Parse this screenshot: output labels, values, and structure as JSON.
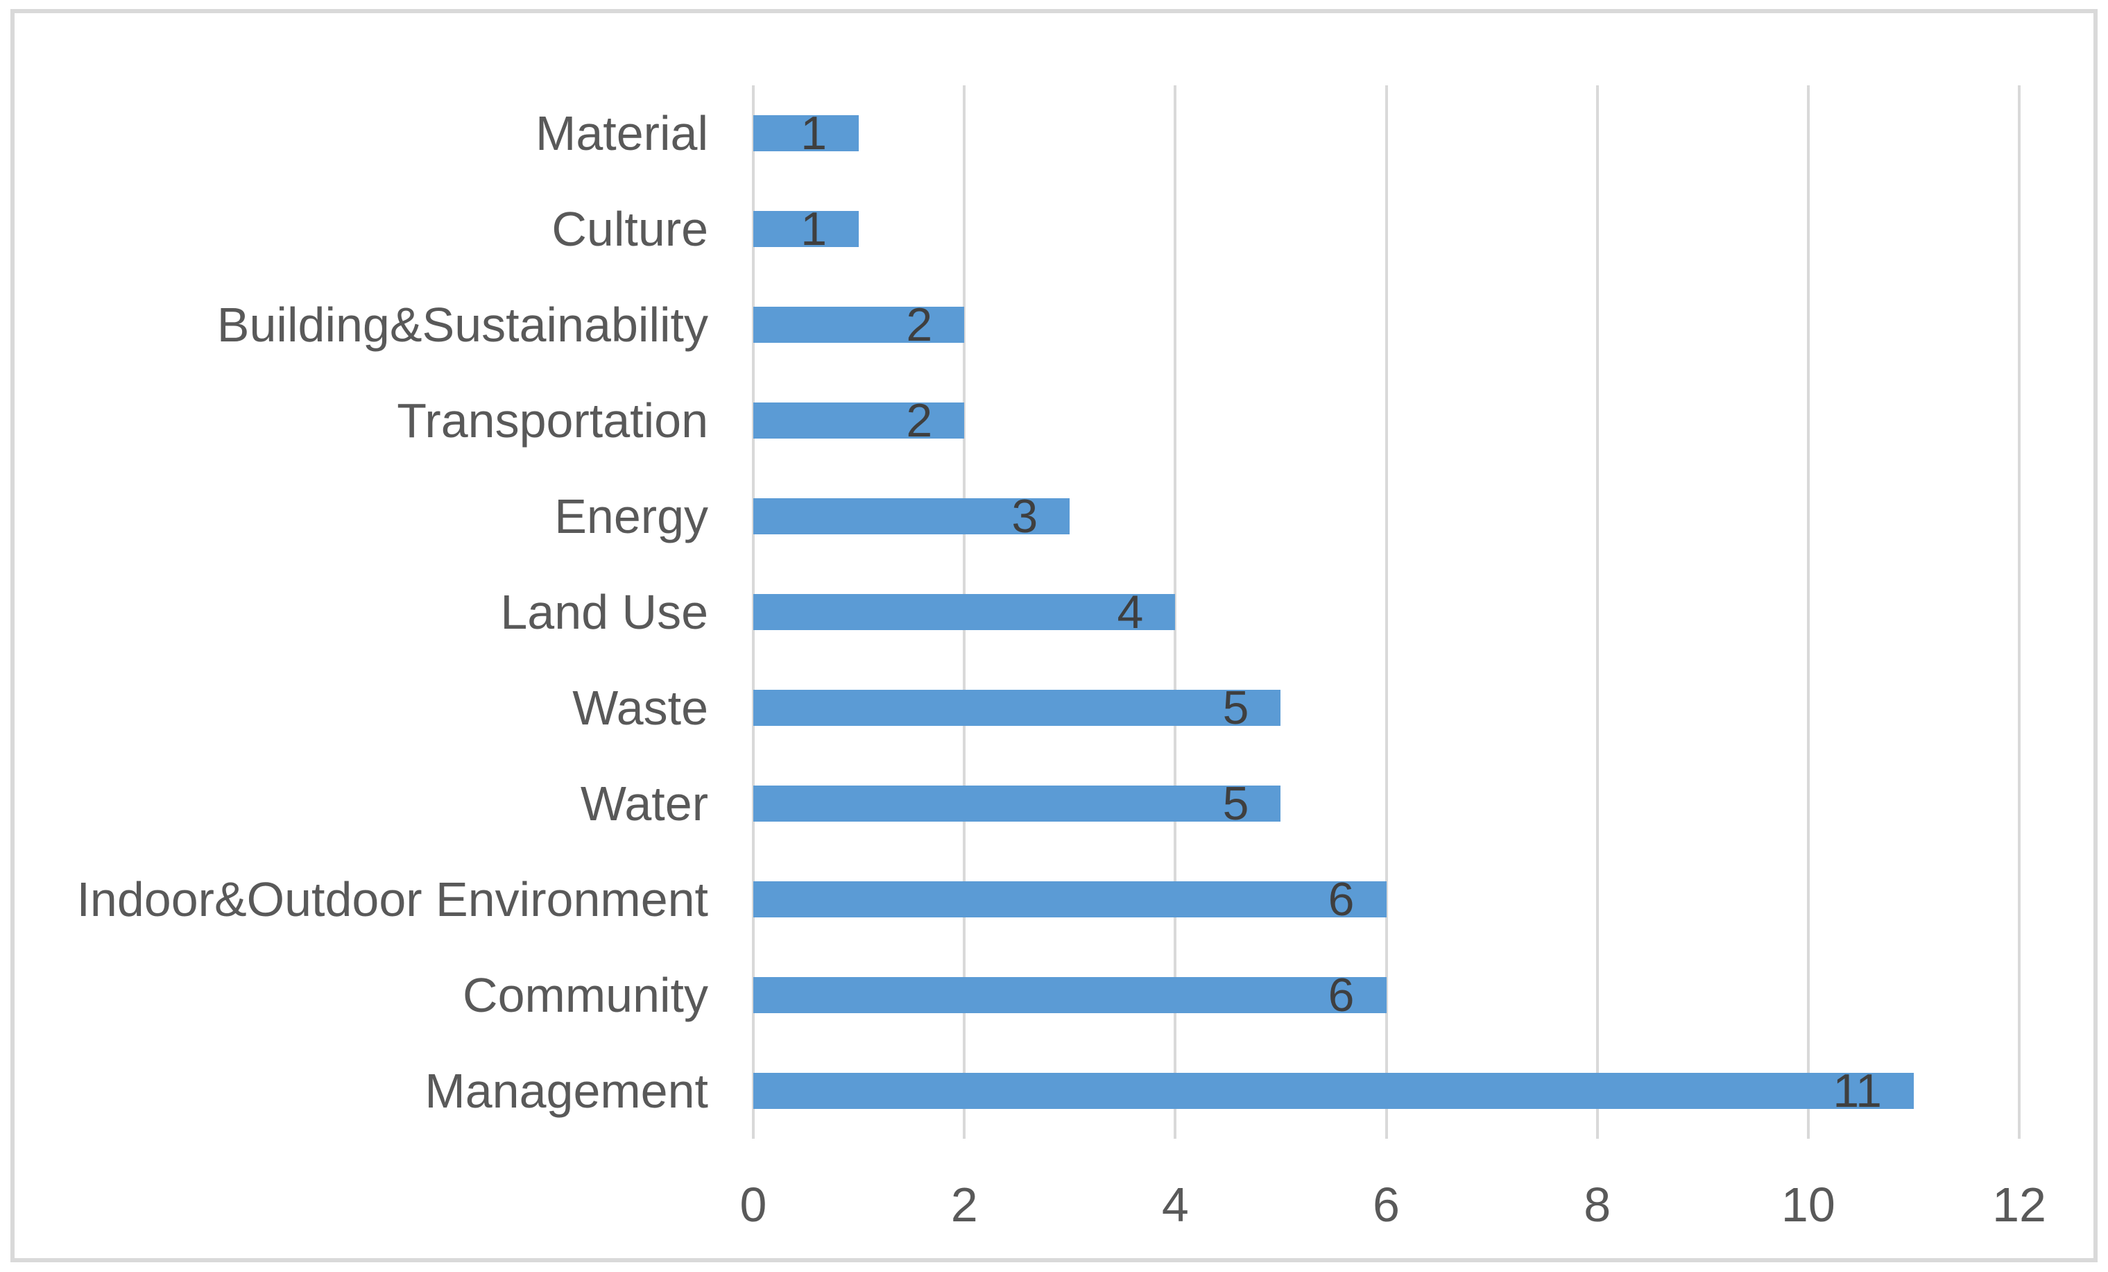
{
  "figure": {
    "title": "",
    "background_color": "#FFFFFF",
    "border_color": "#D9D9D9"
  },
  "chart_data": {
    "type": "bar",
    "orientation": "horizontal",
    "title": "",
    "xlabel": "",
    "ylabel": "",
    "categories": [
      "Material",
      "Culture",
      "Building&Sustainability",
      "Transportation",
      "Energy",
      "Land Use",
      "Waste",
      "Water",
      "Indoor&Outdoor Environment",
      "Community",
      "Management"
    ],
    "values": [
      1,
      1,
      2,
      2,
      3,
      4,
      5,
      5,
      6,
      6,
      11
    ],
    "data_labels": [
      "1",
      "1",
      "2",
      "2",
      "3",
      "4",
      "5",
      "5",
      "6",
      "6",
      "11"
    ],
    "data_label_position": "inside-end",
    "x_ticks": [
      "0",
      "2",
      "4",
      "6",
      "8",
      "10",
      "12"
    ],
    "xlim": [
      0,
      12
    ],
    "grid": "vertical-gridlines-on",
    "legend_position": "none",
    "colors": {
      "bar": "#5B9BD5",
      "gridline": "#D9D9D9",
      "axis_label": "#595959",
      "data_label": "#3F3F3F"
    }
  }
}
